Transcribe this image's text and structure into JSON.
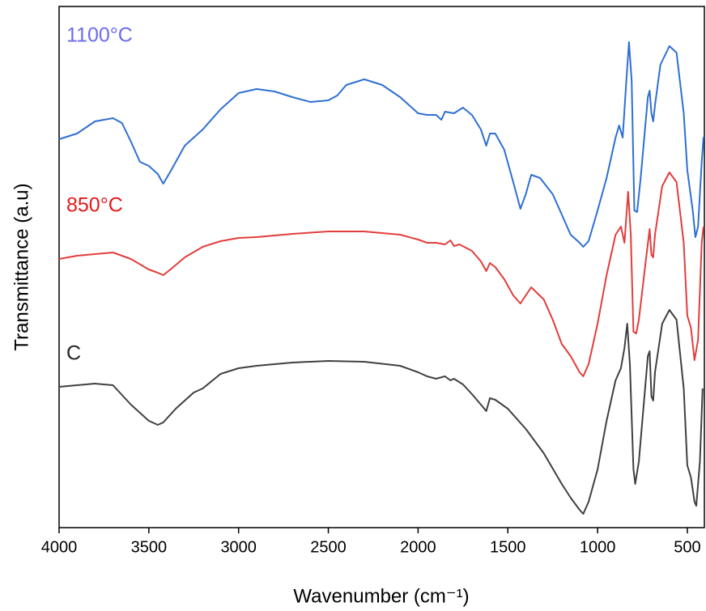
{
  "chart_data": {
    "type": "line",
    "x_label": "Wavenumber (cm⁻¹)",
    "y_label": "Transmittance (a.u)",
    "xlim": [
      4000,
      405
    ],
    "ylim": [
      0,
      644
    ],
    "xticks": [
      4000,
      3500,
      3000,
      2500,
      2000,
      1500,
      1000,
      500
    ],
    "series": [
      {
        "name": "1100°C",
        "color": "#2f6fd2",
        "label_color": "#6b6bf0",
        "x": [
          4000,
          3900,
          3800,
          3700,
          3650,
          3600,
          3550,
          3500,
          3450,
          3420,
          3380,
          3300,
          3250,
          3200,
          3100,
          3000,
          2900,
          2800,
          2700,
          2600,
          2500,
          2450,
          2400,
          2300,
          2200,
          2100,
          2000,
          1950,
          1900,
          1870,
          1850,
          1800,
          1750,
          1700,
          1650,
          1620,
          1600,
          1570,
          1520,
          1470,
          1430,
          1400,
          1370,
          1320,
          1250,
          1200,
          1150,
          1100,
          1080,
          1050,
          1000,
          950,
          900,
          880,
          860,
          840,
          825,
          810,
          795,
          780,
          760,
          720,
          710,
          700,
          690,
          680,
          650,
          600,
          560,
          520,
          500,
          470,
          455,
          440,
          420,
          410,
          405
        ],
        "values": [
          480,
          487,
          502,
          506,
          500,
          477,
          452,
          447,
          437,
          425,
          440,
          472,
          482,
          492,
          517,
          537,
          542,
          539,
          532,
          526,
          528,
          534,
          547,
          554,
          547,
          532,
          512,
          510,
          510,
          504,
          514,
          512,
          519,
          510,
          492,
          472,
          487,
          487,
          467,
          427,
          394,
          412,
          436,
          432,
          412,
          387,
          362,
          352,
          347,
          354,
          392,
          432,
          482,
          497,
          482,
          552,
          600,
          552,
          392,
          390,
          432,
          532,
          540,
          512,
          502,
          522,
          572,
          595,
          587,
          512,
          442,
          392,
          359,
          372,
          452,
          482,
          482
        ]
      },
      {
        "name": "850°C",
        "color": "#e23d3d",
        "label_color": "#e31a1c",
        "x": [
          4000,
          3900,
          3800,
          3700,
          3600,
          3500,
          3450,
          3420,
          3380,
          3300,
          3200,
          3100,
          3000,
          2900,
          2700,
          2500,
          2300,
          2100,
          2000,
          1950,
          1900,
          1850,
          1820,
          1800,
          1770,
          1700,
          1650,
          1620,
          1600,
          1570,
          1520,
          1470,
          1430,
          1400,
          1370,
          1300,
          1250,
          1200,
          1150,
          1100,
          1080,
          1050,
          1000,
          950,
          900,
          870,
          850,
          830,
          815,
          800,
          785,
          770,
          730,
          710,
          700,
          690,
          680,
          640,
          600,
          560,
          520,
          500,
          480,
          460,
          440,
          420,
          410
        ],
        "values": [
          332,
          336,
          338,
          340,
          332,
          319,
          315,
          312,
          319,
          334,
          347,
          354,
          358,
          359,
          363,
          366,
          366,
          362,
          356,
          352,
          352,
          350,
          355,
          348,
          350,
          342,
          329,
          317,
          327,
          322,
          307,
          287,
          277,
          287,
          297,
          282,
          257,
          227,
          212,
          192,
          187,
          202,
          252,
          312,
          362,
          372,
          352,
          415,
          362,
          242,
          240,
          257,
          332,
          369,
          337,
          334,
          362,
          422,
          439,
          427,
          352,
          262,
          247,
          207,
          232,
          352,
          372
        ]
      },
      {
        "name": "C",
        "color": "#404040",
        "label_color": "#222222",
        "x": [
          4000,
          3800,
          3700,
          3600,
          3500,
          3450,
          3420,
          3350,
          3250,
          3200,
          3100,
          3000,
          2900,
          2700,
          2500,
          2300,
          2100,
          2000,
          1950,
          1900,
          1850,
          1820,
          1800,
          1750,
          1700,
          1650,
          1620,
          1600,
          1570,
          1500,
          1400,
          1300,
          1200,
          1150,
          1100,
          1080,
          1050,
          1000,
          950,
          900,
          870,
          850,
          835,
          820,
          800,
          790,
          770,
          720,
          710,
          700,
          690,
          680,
          640,
          600,
          560,
          520,
          500,
          480,
          460,
          450,
          430,
          415
        ],
        "values": [
          174,
          178,
          176,
          152,
          132,
          127,
          130,
          147,
          167,
          172,
          190,
          197,
          200,
          204,
          206,
          205,
          200,
          192,
          187,
          184,
          187,
          182,
          184,
          177,
          165,
          152,
          144,
          160,
          158,
          147,
          122,
          92,
          54,
          37,
          22,
          17,
          32,
          72,
          132,
          182,
          197,
          222,
          252,
          202,
          72,
          54,
          82,
          212,
          218,
          162,
          157,
          192,
          252,
          269,
          257,
          172,
          77,
          62,
          32,
          27,
          82,
          172
        ]
      }
    ]
  }
}
